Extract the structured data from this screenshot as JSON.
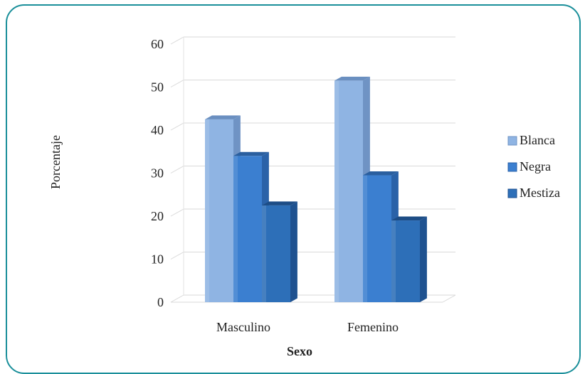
{
  "chart_data": {
    "type": "bar",
    "title": "",
    "xlabel": "Sexo",
    "ylabel": "Porcentaje",
    "categories": [
      "Masculino",
      "Femenino"
    ],
    "ylim": [
      0,
      60
    ],
    "yticks": [
      "0",
      "10",
      "20",
      "30",
      "40",
      "50",
      "60"
    ],
    "grid": true,
    "legend_position": "right",
    "series": [
      {
        "name": "Blanca",
        "values": [
          42.5,
          51.5
        ],
        "color": "#8fb4e3",
        "side": "#6f93c4",
        "top": "#6a8fc0"
      },
      {
        "name": "Negra",
        "values": [
          34,
          29.5
        ],
        "color": "#3b7fd0",
        "side": "#2a62a8",
        "top": "#2a5f9f"
      },
      {
        "name": "Mestiza",
        "values": [
          22.5,
          19
        ],
        "color": "#2d6fb8",
        "side": "#1f5290",
        "top": "#1d4d86"
      }
    ]
  }
}
